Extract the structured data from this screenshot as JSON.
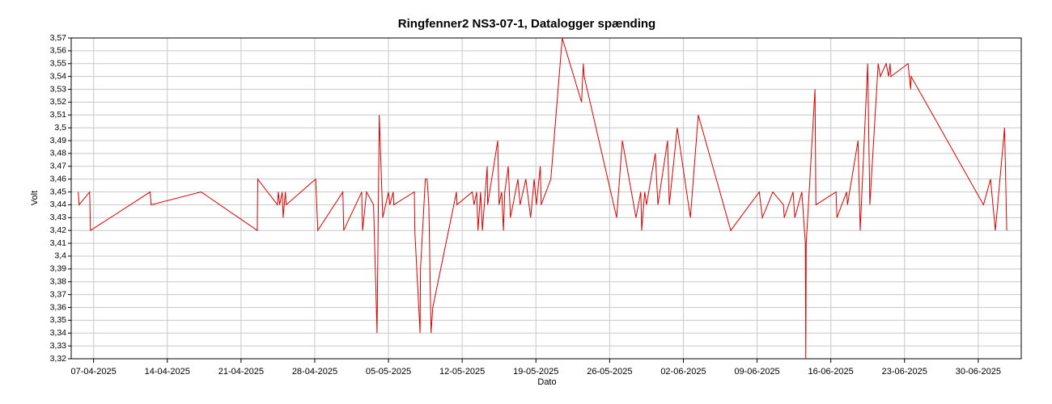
{
  "chart_data": {
    "type": "line",
    "title": "Ringfenner2 NS3-07-1, Datalogger spænding",
    "xlabel": "Dato",
    "ylabel": "Volt",
    "grid": true,
    "x": [
      "2025-04-05T13:00",
      "2025-04-05T15:00",
      "2025-04-06T15:00",
      "2025-04-06T17:00",
      "2025-04-12T09:00",
      "2025-04-12T11:00",
      "2025-04-17T05:00",
      "2025-04-22T13:00",
      "2025-04-22T14:00",
      "2025-04-24T11:00",
      "2025-04-24T13:00",
      "2025-04-24T16:00",
      "2025-04-24T22:00",
      "2025-04-25T00:00",
      "2025-04-25T05:00",
      "2025-04-25T07:00",
      "2025-04-28T02:00",
      "2025-04-28T07:00",
      "2025-04-30T16:00",
      "2025-04-30T18:00",
      "2025-05-02T11:00",
      "2025-05-02T13:00",
      "2025-05-02T22:00",
      "2025-05-03T14:00",
      "2025-05-03T22:00",
      "2025-05-04T03:00",
      "2025-05-04T11:00",
      "2025-05-05T00:00",
      "2025-05-05T03:00",
      "2025-05-05T11:00",
      "2025-05-05T12:00",
      "2025-05-07T11:00",
      "2025-05-07T12:00",
      "2025-05-08T00:00",
      "2025-05-08T01:00",
      "2025-05-08T12:00",
      "2025-05-08T16:00",
      "2025-05-08T20:00",
      "2025-05-09T01:00",
      "2025-05-09T05:00",
      "2025-05-11T11:00",
      "2025-05-11T12:00",
      "2025-05-12T23:00",
      "2025-05-13T03:00",
      "2025-05-13T09:00",
      "2025-05-13T12:00",
      "2025-05-13T18:00",
      "2025-05-13T22:00",
      "2025-05-14T09:00",
      "2025-05-14T10:00",
      "2025-05-15T09:00",
      "2025-05-15T12:00",
      "2025-05-15T18:00",
      "2025-05-15T22:00",
      "2025-05-16T01:00",
      "2025-05-16T09:00",
      "2025-05-16T14:00",
      "2025-05-17T07:00",
      "2025-05-17T12:00",
      "2025-05-18T01:00",
      "2025-05-18T12:00",
      "2025-05-18T20:00",
      "2025-05-19T01:00",
      "2025-05-19T10:00",
      "2025-05-19T12:00",
      "2025-05-20T10:00",
      "2025-05-21T12:00",
      "2025-05-23T08:00",
      "2025-05-23T12:00",
      "2025-05-23T14:00",
      "2025-05-26T16:00",
      "2025-05-27T05:00",
      "2025-05-28T12:00",
      "2025-05-28T23:00",
      "2025-05-29T01:00",
      "2025-05-29T08:00",
      "2025-05-29T12:00",
      "2025-05-30T08:00",
      "2025-05-30T14:00",
      "2025-05-31T12:00",
      "2025-05-31T16:00",
      "2025-06-01T10:00",
      "2025-06-02T16:00",
      "2025-06-03T10:00",
      "2025-06-06T12:00",
      "2025-06-09T05:00",
      "2025-06-09T12:00",
      "2025-06-10T12:00",
      "2025-06-11T12:00",
      "2025-06-11T14:00",
      "2025-06-12T10:00",
      "2025-06-12T14:00",
      "2025-06-13T06:00",
      "2025-06-13T14:00",
      "2025-06-13T15:00",
      "2025-06-13T16:00",
      "2025-06-14T12:00",
      "2025-06-14T14:00",
      "2025-06-16T12:00",
      "2025-06-16T14:00",
      "2025-06-17T12:00",
      "2025-06-17T14:00",
      "2025-06-18T14:00",
      "2025-06-18T19:00",
      "2025-06-19T12:00",
      "2025-06-19T17:00",
      "2025-06-20T12:00",
      "2025-06-20T17:00",
      "2025-06-21T06:00",
      "2025-06-21T12:00",
      "2025-06-21T15:00",
      "2025-06-21T17:00",
      "2025-06-23T08:00",
      "2025-06-23T14:00",
      "2025-06-23T15:00",
      "2025-06-30T12:00",
      "2025-07-01T04:00",
      "2025-07-01T15:00",
      "2025-07-02T12:00",
      "2025-07-02T17:00"
    ],
    "series": [
      {
        "color": "#e00000",
        "values": [
          3.45,
          3.44,
          3.45,
          3.42,
          3.45,
          3.44,
          3.45,
          3.42,
          3.46,
          3.44,
          3.45,
          3.44,
          3.45,
          3.43,
          3.45,
          3.44,
          3.46,
          3.42,
          3.45,
          3.42,
          3.45,
          3.42,
          3.45,
          3.44,
          3.34,
          3.51,
          3.43,
          3.45,
          3.44,
          3.45,
          3.44,
          3.45,
          3.42,
          3.34,
          3.39,
          3.46,
          3.46,
          3.44,
          3.34,
          3.36,
          3.45,
          3.44,
          3.45,
          3.44,
          3.45,
          3.42,
          3.45,
          3.42,
          3.47,
          3.44,
          3.49,
          3.44,
          3.45,
          3.42,
          3.45,
          3.47,
          3.43,
          3.46,
          3.44,
          3.46,
          3.43,
          3.46,
          3.44,
          3.47,
          3.44,
          3.46,
          3.57,
          3.52,
          3.55,
          3.54,
          3.43,
          3.49,
          3.43,
          3.45,
          3.42,
          3.45,
          3.44,
          3.48,
          3.44,
          3.49,
          3.44,
          3.5,
          3.43,
          3.51,
          3.42,
          3.45,
          3.43,
          3.45,
          3.44,
          3.43,
          3.45,
          3.43,
          3.45,
          3.41,
          3.32,
          3.41,
          3.53,
          3.44,
          3.45,
          3.43,
          3.45,
          3.44,
          3.49,
          3.42,
          3.55,
          3.44,
          3.55,
          3.54,
          3.55,
          3.54,
          3.55,
          3.54,
          3.55,
          3.53,
          3.54,
          3.44,
          3.46,
          3.42,
          3.5,
          3.42
        ]
      }
    ],
    "xlim": [
      "2025-04-04T21:00",
      "2025-07-04T02:00"
    ],
    "xticks": [
      {
        "value": "2025-04-07T00:00",
        "label": "07-04-2025"
      },
      {
        "value": "2025-04-14T00:00",
        "label": "14-04-2025"
      },
      {
        "value": "2025-04-21T00:00",
        "label": "21-04-2025"
      },
      {
        "value": "2025-04-28T00:00",
        "label": "28-04-2025"
      },
      {
        "value": "2025-05-05T00:00",
        "label": "05-05-2025"
      },
      {
        "value": "2025-05-12T00:00",
        "label": "12-05-2025"
      },
      {
        "value": "2025-05-19T00:00",
        "label": "19-05-2025"
      },
      {
        "value": "2025-05-26T00:00",
        "label": "26-05-2025"
      },
      {
        "value": "2025-06-02T00:00",
        "label": "02-06-2025"
      },
      {
        "value": "2025-06-09T00:00",
        "label": "09-06-2025"
      },
      {
        "value": "2025-06-16T00:00",
        "label": "16-06-2025"
      },
      {
        "value": "2025-06-23T00:00",
        "label": "23-06-2025"
      },
      {
        "value": "2025-06-30T00:00",
        "label": "30-06-2025"
      }
    ],
    "ylim": [
      3.32,
      3.57
    ],
    "yticks": [
      {
        "value": 3.32,
        "label": "3,32"
      },
      {
        "value": 3.33,
        "label": "3,33"
      },
      {
        "value": 3.34,
        "label": "3,34"
      },
      {
        "value": 3.35,
        "label": "3,35"
      },
      {
        "value": 3.36,
        "label": "3,36"
      },
      {
        "value": 3.37,
        "label": "3,37"
      },
      {
        "value": 3.38,
        "label": "3,38"
      },
      {
        "value": 3.39,
        "label": "3,39"
      },
      {
        "value": 3.4,
        "label": "3,4"
      },
      {
        "value": 3.41,
        "label": "3,41"
      },
      {
        "value": 3.42,
        "label": "3,42"
      },
      {
        "value": 3.43,
        "label": "3,43"
      },
      {
        "value": 3.44,
        "label": "3,44"
      },
      {
        "value": 3.45,
        "label": "3,45"
      },
      {
        "value": 3.46,
        "label": "3,46"
      },
      {
        "value": 3.47,
        "label": "3,47"
      },
      {
        "value": 3.48,
        "label": "3,48"
      },
      {
        "value": 3.49,
        "label": "3,49"
      },
      {
        "value": 3.5,
        "label": "3,5"
      },
      {
        "value": 3.51,
        "label": "3,51"
      },
      {
        "value": 3.52,
        "label": "3,52"
      },
      {
        "value": 3.53,
        "label": "3,53"
      },
      {
        "value": 3.54,
        "label": "3,54"
      },
      {
        "value": 3.55,
        "label": "3,55"
      },
      {
        "value": 3.56,
        "label": "3,56"
      },
      {
        "value": 3.57,
        "label": "3,57"
      }
    ]
  }
}
